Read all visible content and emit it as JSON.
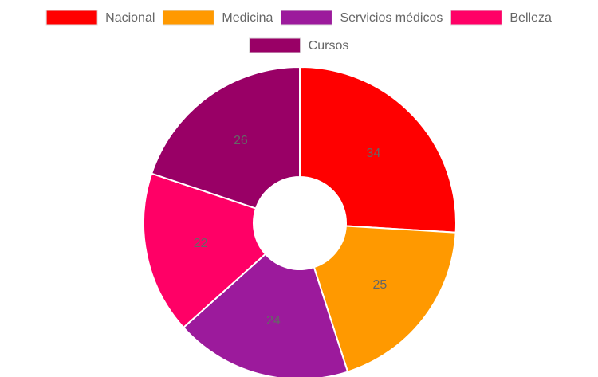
{
  "chart_data": {
    "type": "doughnut",
    "categories": [
      "Nacional",
      "Medicina",
      "Servicios médicos",
      "Belleza",
      "Cursos"
    ],
    "values": [
      34,
      25,
      24,
      22,
      26
    ],
    "colors": [
      "#ff0000",
      "#ff9900",
      "#9c1a9c",
      "#ff0066",
      "#990066"
    ],
    "legend": "top"
  }
}
